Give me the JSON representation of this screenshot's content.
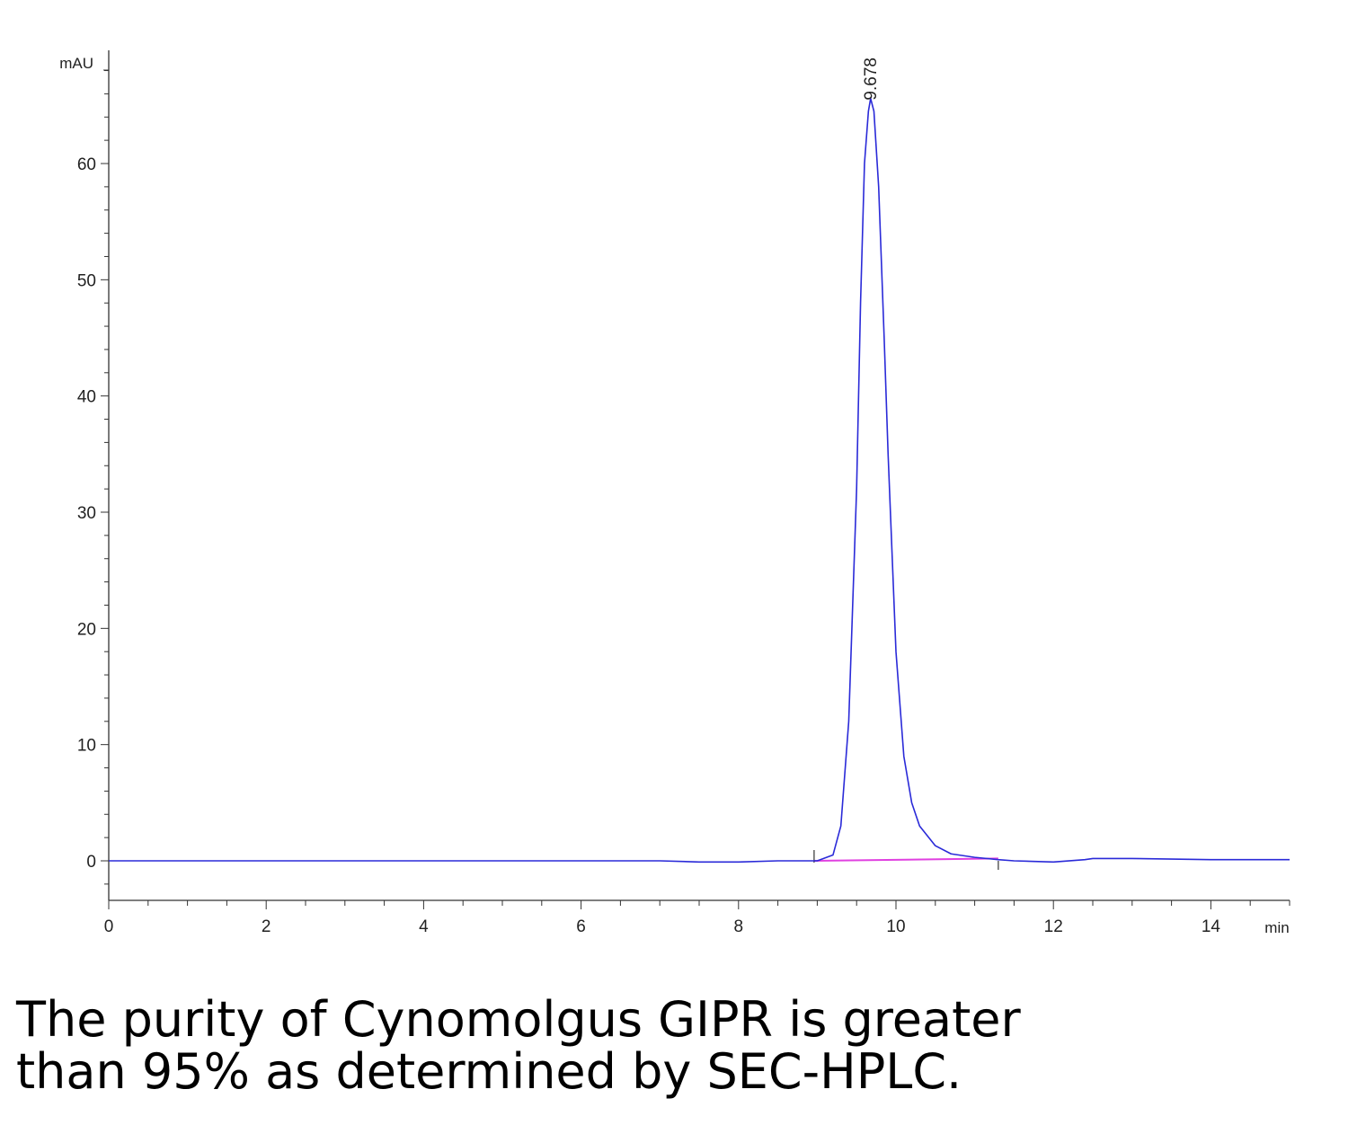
{
  "chart_data": {
    "type": "line",
    "ylabel": "mAU",
    "xlabel": "min",
    "xlim": [
      0,
      15
    ],
    "ylim": [
      -3.3,
      70
    ],
    "x_ticks": [
      0,
      2,
      4,
      6,
      8,
      10,
      12,
      14
    ],
    "y_ticks": [
      0,
      10,
      20,
      30,
      40,
      50,
      60
    ],
    "grid": false,
    "series": [
      {
        "color": "#2a2ad8",
        "x": [
          0,
          1,
          2,
          3,
          4,
          5,
          6,
          7,
          7.5,
          8,
          8.5,
          9.0,
          9.2,
          9.3,
          9.4,
          9.5,
          9.55,
          9.6,
          9.65,
          9.678,
          9.72,
          9.78,
          9.85,
          9.9,
          10.0,
          10.1,
          10.2,
          10.3,
          10.5,
          10.7,
          11.0,
          11.3,
          11.5,
          12.0,
          12.4,
          12.5,
          13.0,
          14.0,
          15.0
        ],
        "y": [
          0,
          0,
          0,
          0,
          0,
          0,
          0,
          0,
          -0.1,
          -0.1,
          0,
          0,
          0.5,
          3,
          12,
          32,
          48,
          60,
          64.5,
          65.6,
          64.5,
          58,
          45,
          35,
          18,
          9,
          5,
          3,
          1.3,
          0.6,
          0.3,
          0.1,
          0.0,
          -0.1,
          0.1,
          0.2,
          0.2,
          0.1,
          0.1
        ]
      }
    ],
    "baseline": {
      "color": "#e040e0",
      "x": [
        8.96,
        11.3
      ],
      "y": [
        0,
        0.2
      ]
    },
    "integration_marks": [
      8.96,
      11.3
    ],
    "peak_annotations": [
      {
        "x": 9.678,
        "y": 65.6,
        "label": "9.678"
      }
    ]
  },
  "caption": {
    "line1": "The purity of Cynomolgus GIPR is greater",
    "line2": "than 95% as determined by SEC-HPLC."
  }
}
